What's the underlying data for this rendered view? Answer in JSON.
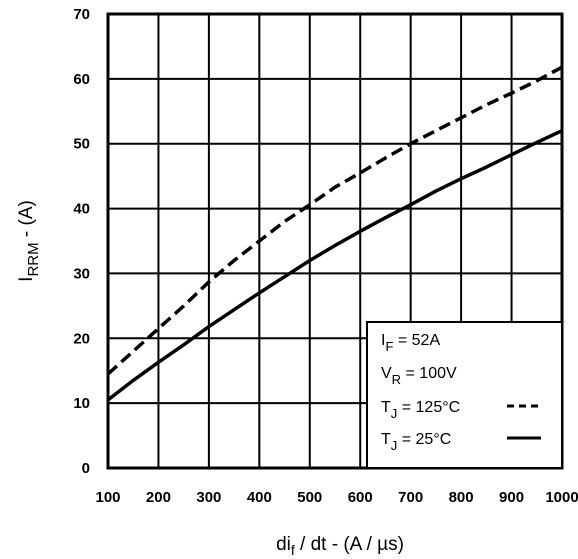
{
  "chart_data": {
    "type": "line",
    "xlabel": {
      "main": "di",
      "sub": "f",
      "rest": " / dt - (A / µs)"
    },
    "ylabel": {
      "main": "I",
      "sub": "RRM",
      "rest": " - (A)"
    },
    "xlim": [
      100,
      1000
    ],
    "ylim": [
      0,
      70
    ],
    "xticks": [
      100,
      200,
      300,
      400,
      500,
      600,
      700,
      800,
      900,
      1000
    ],
    "yticks": [
      0,
      10,
      20,
      30,
      40,
      50,
      60,
      70
    ],
    "xtick_labels": [
      "100",
      "200",
      "300",
      "400",
      "500",
      "600",
      "700",
      "800",
      "900",
      "1000"
    ],
    "ytick_labels": [
      "0",
      "10",
      "20",
      "30",
      "40",
      "50",
      "60",
      "70"
    ],
    "grid": true,
    "series": [
      {
        "name": "TJ = 125°C",
        "style": "dashed",
        "x": [
          100,
          150,
          200,
          250,
          300,
          350,
          400,
          450,
          500,
          550,
          600,
          650,
          700,
          750,
          800,
          850,
          900,
          950,
          1000
        ],
        "y": [
          14.5,
          18.0,
          21.5,
          25.0,
          28.7,
          32.0,
          35.0,
          38.0,
          40.6,
          43.3,
          45.5,
          47.8,
          50.0,
          52.0,
          54.0,
          56.0,
          57.8,
          59.7,
          61.8
        ]
      },
      {
        "name": "TJ = 25°C",
        "style": "solid",
        "x": [
          100,
          150,
          200,
          250,
          300,
          350,
          400,
          450,
          500,
          550,
          600,
          650,
          700,
          750,
          800,
          850,
          900,
          950,
          1000
        ],
        "y": [
          10.5,
          13.5,
          16.3,
          19.0,
          21.8,
          24.4,
          27.0,
          29.5,
          32.0,
          34.3,
          36.5,
          38.6,
          40.6,
          42.7,
          44.6,
          46.4,
          48.3,
          50.2,
          52.0
        ]
      }
    ],
    "legend": {
      "placement": "bottom-right",
      "lines": [
        {
          "main": "I",
          "sub": "F",
          "rest": " = 52A",
          "key": ""
        },
        {
          "main": "V",
          "sub": "R",
          "rest": " = 100V",
          "key": ""
        },
        {
          "main": "T",
          "sub": "J",
          "rest": " = 125°C",
          "key": "dashed"
        },
        {
          "main": "T",
          "sub": "J",
          "rest": " =  25°C",
          "key": "solid"
        }
      ]
    },
    "colors": {
      "line": "#000000",
      "grid": "#000000",
      "background": "#ffffff"
    }
  }
}
